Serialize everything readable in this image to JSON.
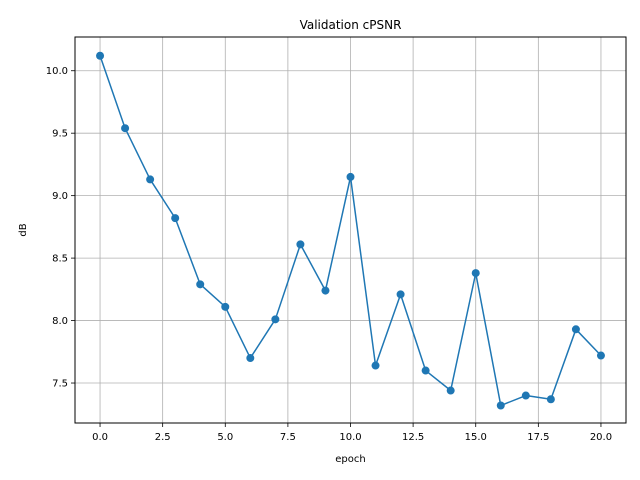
{
  "chart_data": {
    "type": "line",
    "title": "Validation cPSNR",
    "xlabel": "epoch",
    "ylabel": "dB",
    "xlim": [
      -1.0,
      21.0
    ],
    "ylim": [
      7.18,
      10.27
    ],
    "xticks": [
      0.0,
      2.5,
      5.0,
      7.5,
      10.0,
      12.5,
      15.0,
      17.5,
      20.0
    ],
    "xtick_labels": [
      "0.0",
      "2.5",
      "5.0",
      "7.5",
      "10.0",
      "12.5",
      "15.0",
      "17.5",
      "20.0"
    ],
    "yticks": [
      7.5,
      8.0,
      8.5,
      9.0,
      9.5,
      10.0
    ],
    "ytick_labels": [
      "7.5",
      "8.0",
      "8.5",
      "9.0",
      "9.5",
      "10.0"
    ],
    "grid": true,
    "marker": "circle",
    "color": "#1f77b4",
    "x": [
      0,
      1,
      2,
      3,
      4,
      5,
      6,
      7,
      8,
      9,
      10,
      11,
      12,
      13,
      14,
      15,
      16,
      17,
      18,
      19,
      20
    ],
    "y": [
      10.12,
      9.54,
      9.13,
      8.82,
      8.29,
      8.11,
      7.7,
      8.01,
      8.61,
      8.24,
      9.15,
      7.64,
      8.21,
      7.6,
      7.44,
      8.38,
      7.32,
      7.4,
      7.37,
      7.93,
      7.72
    ]
  }
}
